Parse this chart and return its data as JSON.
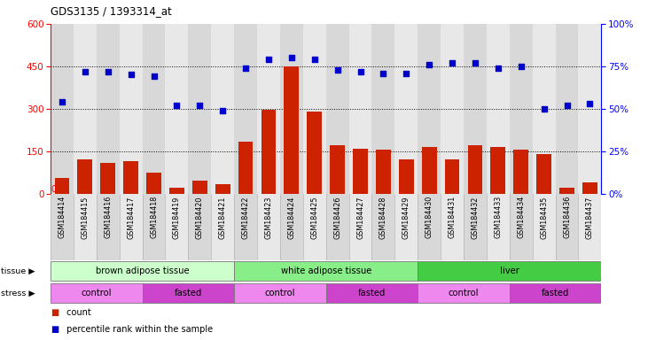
{
  "title": "GDS3135 / 1393314_at",
  "samples": [
    "GSM184414",
    "GSM184415",
    "GSM184416",
    "GSM184417",
    "GSM184418",
    "GSM184419",
    "GSM184420",
    "GSM184421",
    "GSM184422",
    "GSM184423",
    "GSM184424",
    "GSM184425",
    "GSM184426",
    "GSM184427",
    "GSM184428",
    "GSM184429",
    "GSM184430",
    "GSM184431",
    "GSM184432",
    "GSM184433",
    "GSM184434",
    "GSM184435",
    "GSM184436",
    "GSM184437"
  ],
  "counts": [
    55,
    120,
    110,
    115,
    75,
    20,
    45,
    35,
    185,
    295,
    450,
    290,
    170,
    160,
    155,
    120,
    165,
    120,
    170,
    165,
    155,
    140,
    20,
    40
  ],
  "percentile": [
    54,
    72,
    72,
    70,
    69,
    52,
    52,
    49,
    74,
    79,
    80,
    79,
    73,
    72,
    71,
    71,
    76,
    77,
    77,
    74,
    75,
    50,
    52,
    53
  ],
  "tissue_groups": [
    {
      "label": "brown adipose tissue",
      "start": 0,
      "end": 8,
      "color": "#ccffcc"
    },
    {
      "label": "white adipose tissue",
      "start": 8,
      "end": 16,
      "color": "#88ee88"
    },
    {
      "label": "liver",
      "start": 16,
      "end": 24,
      "color": "#44cc44"
    }
  ],
  "stress_groups": [
    {
      "label": "control",
      "start": 0,
      "end": 4,
      "color": "#ee88ee"
    },
    {
      "label": "fasted",
      "start": 4,
      "end": 8,
      "color": "#cc44cc"
    },
    {
      "label": "control",
      "start": 8,
      "end": 12,
      "color": "#ee88ee"
    },
    {
      "label": "fasted",
      "start": 12,
      "end": 16,
      "color": "#cc44cc"
    },
    {
      "label": "control",
      "start": 16,
      "end": 20,
      "color": "#ee88ee"
    },
    {
      "label": "fasted",
      "start": 20,
      "end": 24,
      "color": "#cc44cc"
    }
  ],
  "bar_color": "#cc2200",
  "dot_color": "#0000cc",
  "col_colors": [
    "#d8d8d8",
    "#e8e8e8"
  ]
}
